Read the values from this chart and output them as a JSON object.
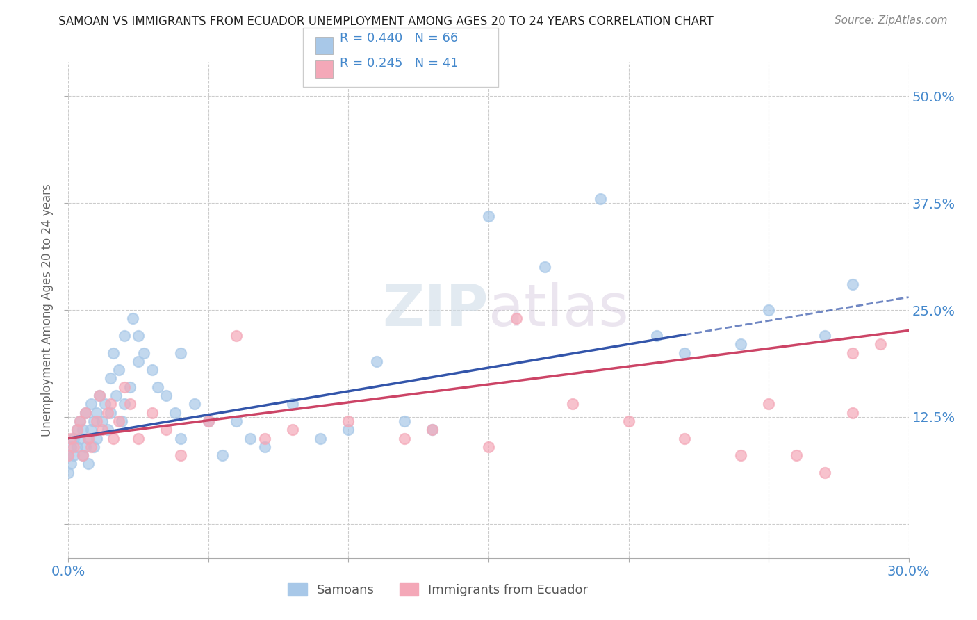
{
  "title": "SAMOAN VS IMMIGRANTS FROM ECUADOR UNEMPLOYMENT AMONG AGES 20 TO 24 YEARS CORRELATION CHART",
  "source": "Source: ZipAtlas.com",
  "ylabel": "Unemployment Among Ages 20 to 24 years",
  "xlim": [
    0.0,
    0.3
  ],
  "ylim": [
    -0.04,
    0.54
  ],
  "xticks": [
    0.0,
    0.05,
    0.1,
    0.15,
    0.2,
    0.25,
    0.3
  ],
  "xticklabels": [
    "0.0%",
    "",
    "",
    "",
    "",
    "",
    "30.0%"
  ],
  "yticks": [
    0.0,
    0.125,
    0.25,
    0.375,
    0.5
  ],
  "yticklabels": [
    "",
    "12.5%",
    "25.0%",
    "37.5%",
    "50.0%"
  ],
  "blue_color": "#a8c8e8",
  "pink_color": "#f4a8b8",
  "trend_blue": "#3355aa",
  "trend_pink": "#cc4466",
  "legend_R_blue": "R = 0.440",
  "legend_N_blue": "N = 66",
  "legend_R_pink": "R = 0.245",
  "legend_N_pink": "N = 41",
  "watermark_zip": "ZIP",
  "watermark_atlas": "atlas",
  "background_color": "#ffffff",
  "grid_color": "#cccccc",
  "title_color": "#222222",
  "source_color": "#888888",
  "tick_color": "#4488cc",
  "label_color": "#666666",
  "legend_text_color": "#4488cc",
  "blue_scatter_x": [
    0.0,
    0.0,
    0.001,
    0.001,
    0.002,
    0.002,
    0.003,
    0.003,
    0.004,
    0.004,
    0.005,
    0.005,
    0.006,
    0.006,
    0.007,
    0.007,
    0.008,
    0.008,
    0.009,
    0.009,
    0.01,
    0.01,
    0.011,
    0.012,
    0.013,
    0.014,
    0.015,
    0.015,
    0.016,
    0.017,
    0.018,
    0.019,
    0.02,
    0.02,
    0.022,
    0.023,
    0.025,
    0.025,
    0.027,
    0.03,
    0.032,
    0.035,
    0.038,
    0.04,
    0.04,
    0.045,
    0.05,
    0.055,
    0.06,
    0.065,
    0.07,
    0.08,
    0.09,
    0.1,
    0.11,
    0.12,
    0.13,
    0.15,
    0.17,
    0.19,
    0.21,
    0.22,
    0.24,
    0.25,
    0.27,
    0.28
  ],
  "blue_scatter_y": [
    0.08,
    0.06,
    0.09,
    0.07,
    0.1,
    0.08,
    0.11,
    0.09,
    0.1,
    0.12,
    0.08,
    0.11,
    0.09,
    0.13,
    0.1,
    0.07,
    0.11,
    0.14,
    0.09,
    0.12,
    0.1,
    0.13,
    0.15,
    0.12,
    0.14,
    0.11,
    0.17,
    0.13,
    0.2,
    0.15,
    0.18,
    0.12,
    0.14,
    0.22,
    0.16,
    0.24,
    0.19,
    0.22,
    0.2,
    0.18,
    0.16,
    0.15,
    0.13,
    0.1,
    0.2,
    0.14,
    0.12,
    0.08,
    0.12,
    0.1,
    0.09,
    0.14,
    0.1,
    0.11,
    0.19,
    0.12,
    0.11,
    0.36,
    0.3,
    0.38,
    0.22,
    0.2,
    0.21,
    0.25,
    0.22,
    0.28
  ],
  "pink_scatter_x": [
    0.0,
    0.001,
    0.002,
    0.003,
    0.004,
    0.005,
    0.006,
    0.007,
    0.008,
    0.01,
    0.011,
    0.012,
    0.014,
    0.015,
    0.016,
    0.018,
    0.02,
    0.022,
    0.025,
    0.03,
    0.035,
    0.04,
    0.05,
    0.06,
    0.07,
    0.08,
    0.1,
    0.12,
    0.13,
    0.15,
    0.16,
    0.18,
    0.2,
    0.22,
    0.24,
    0.25,
    0.26,
    0.27,
    0.28,
    0.28,
    0.29
  ],
  "pink_scatter_y": [
    0.08,
    0.1,
    0.09,
    0.11,
    0.12,
    0.08,
    0.13,
    0.1,
    0.09,
    0.12,
    0.15,
    0.11,
    0.13,
    0.14,
    0.1,
    0.12,
    0.16,
    0.14,
    0.1,
    0.13,
    0.11,
    0.08,
    0.12,
    0.22,
    0.1,
    0.11,
    0.12,
    0.1,
    0.11,
    0.09,
    0.24,
    0.14,
    0.12,
    0.1,
    0.08,
    0.14,
    0.08,
    0.06,
    0.2,
    0.13,
    0.21
  ]
}
